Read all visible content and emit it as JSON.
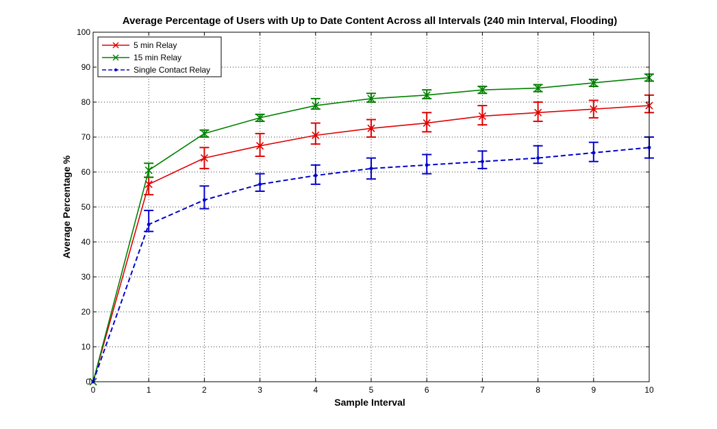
{
  "chart_data": {
    "type": "line",
    "title": "Average Percentage of Users with Up to Date Content Across all Intervals (240 min Interval, Flooding)",
    "xlabel": "Sample Interval",
    "ylabel": "Average Percentage %",
    "xlim": [
      0,
      10
    ],
    "ylim": [
      0,
      100
    ],
    "xticks": [
      0,
      1,
      2,
      3,
      4,
      5,
      6,
      7,
      8,
      9,
      10
    ],
    "yticks": [
      0,
      10,
      20,
      30,
      40,
      50,
      60,
      70,
      80,
      90,
      100
    ],
    "grid": true,
    "legend_position": "top-left",
    "x": [
      0,
      1,
      2,
      3,
      4,
      5,
      6,
      7,
      8,
      9,
      10
    ],
    "series": [
      {
        "name": "5 min Relay",
        "color": "#e00000",
        "line": "solid",
        "marker": "x",
        "values": [
          0,
          56.5,
          64,
          67.5,
          70.5,
          72.5,
          74,
          76,
          77,
          78,
          79
        ],
        "err_low": [
          0,
          3,
          3,
          3,
          2.5,
          2.5,
          2.5,
          2.5,
          2.5,
          2.5,
          2
        ],
        "err_high": [
          0,
          2,
          3,
          3.5,
          3.5,
          2.5,
          3,
          3,
          3,
          2.5,
          3
        ]
      },
      {
        "name": "15 min Relay",
        "color": "#008000",
        "line": "solid",
        "marker": "x",
        "values": [
          0,
          60.5,
          71,
          75.5,
          79,
          81,
          82,
          83.5,
          84,
          85.5,
          87
        ],
        "err_low": [
          0,
          2,
          1,
          1,
          1,
          1,
          1,
          1,
          1,
          1,
          1
        ],
        "err_high": [
          0,
          2,
          1,
          1,
          2,
          1.5,
          1.5,
          1,
          1,
          1,
          1
        ]
      },
      {
        "name": "Single Contact Relay",
        "color": "#0000cc",
        "line": "dashed",
        "marker": "dot",
        "values": [
          0,
          45,
          52,
          56.5,
          59,
          61,
          62,
          63,
          64,
          65.5,
          67
        ],
        "err_low": [
          0,
          2,
          2.5,
          2,
          2.5,
          3,
          2.5,
          2,
          1.5,
          2.5,
          3
        ],
        "err_high": [
          0,
          4,
          4,
          3,
          3,
          3,
          3,
          3,
          3.5,
          3,
          3
        ]
      }
    ]
  }
}
